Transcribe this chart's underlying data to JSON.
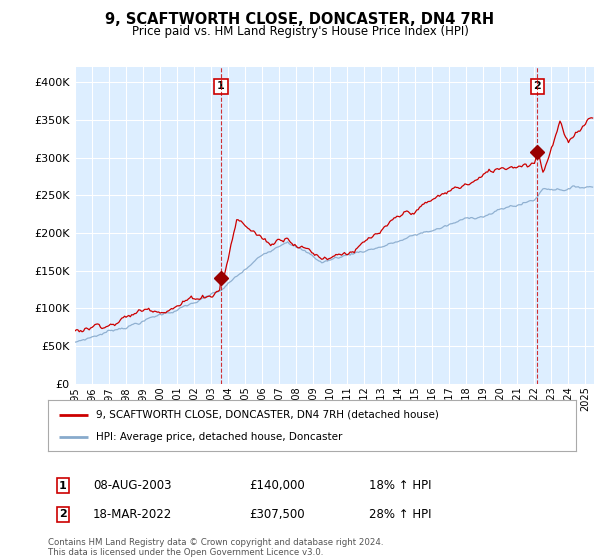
{
  "title": "9, SCAFTWORTH CLOSE, DONCASTER, DN4 7RH",
  "subtitle": "Price paid vs. HM Land Registry's House Price Index (HPI)",
  "ylim": [
    0,
    420000
  ],
  "yticks": [
    0,
    50000,
    100000,
    150000,
    200000,
    250000,
    300000,
    350000,
    400000
  ],
  "transaction1": {
    "date": "08-AUG-2003",
    "price": 140000,
    "hpi_pct": "18% ↑ HPI",
    "label": "1"
  },
  "transaction2": {
    "date": "18-MAR-2022",
    "price": 307500,
    "hpi_pct": "28% ↑ HPI",
    "label": "2"
  },
  "legend_house": "9, SCAFTWORTH CLOSE, DONCASTER, DN4 7RH (detached house)",
  "legend_hpi": "HPI: Average price, detached house, Doncaster",
  "footer": "Contains HM Land Registry data © Crown copyright and database right 2024.\nThis data is licensed under the Open Government Licence v3.0.",
  "house_color": "#cc0000",
  "hpi_color": "#88aacc",
  "vline_color": "#cc0000",
  "dot_color": "#990000",
  "background_color": "#ffffff",
  "plot_bg_color": "#ddeeff",
  "grid_color": "#ffffff",
  "t1_year": 2003.583,
  "t2_year": 2022.167,
  "xmin": 1995,
  "xmax": 2025.5
}
